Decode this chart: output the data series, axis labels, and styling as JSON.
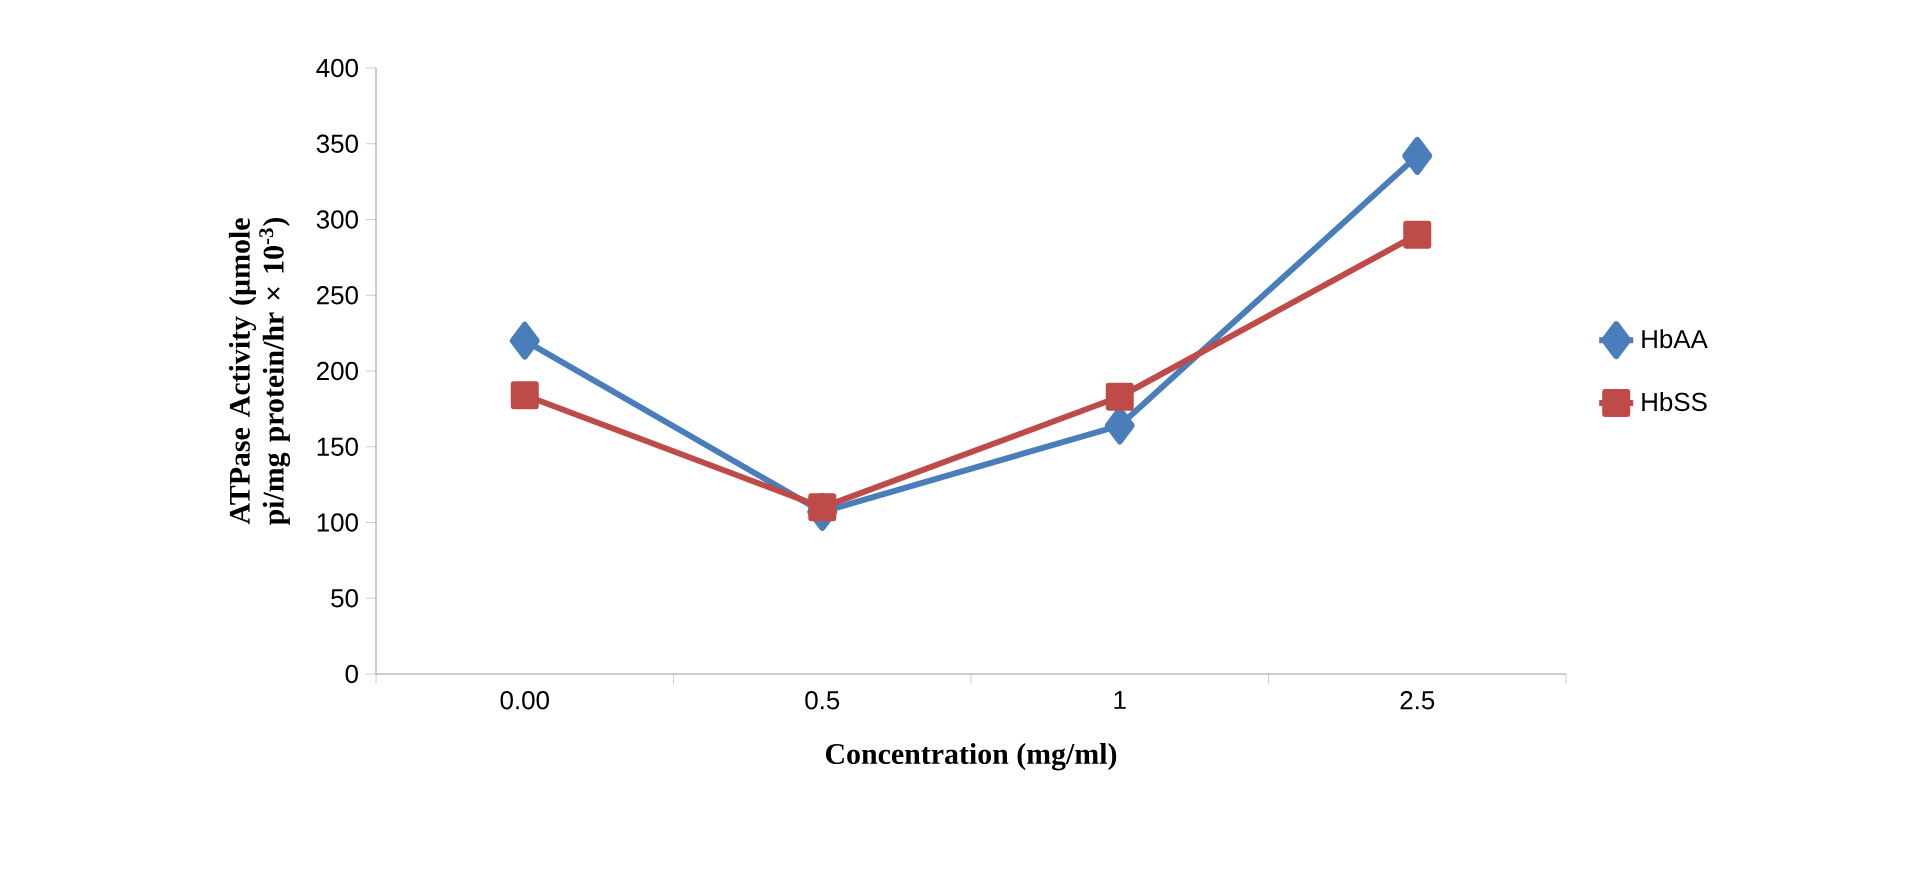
{
  "chart_data": {
    "type": "line",
    "xlabel": "Concentration (mg/ml)",
    "ylabel": "ATPase Activity (µmole pi/mg protein/hr × 10$^{-3}$)",
    "categories": [
      "0.00",
      "0.5",
      "1",
      "2.5"
    ],
    "series": [
      {
        "name": "HbAA",
        "color": "#4a7ebb",
        "marker": "diamond",
        "values": [
          220,
          107,
          164,
          342
        ]
      },
      {
        "name": "HbSS",
        "color": "#be4b48",
        "marker": "square",
        "values": [
          184,
          110,
          183,
          290
        ]
      }
    ],
    "ylim": [
      0,
      400
    ],
    "yticks": [
      0,
      50,
      100,
      150,
      200,
      250,
      300,
      350,
      400
    ],
    "grid": false,
    "legend": "right",
    "line_style": "solid"
  }
}
